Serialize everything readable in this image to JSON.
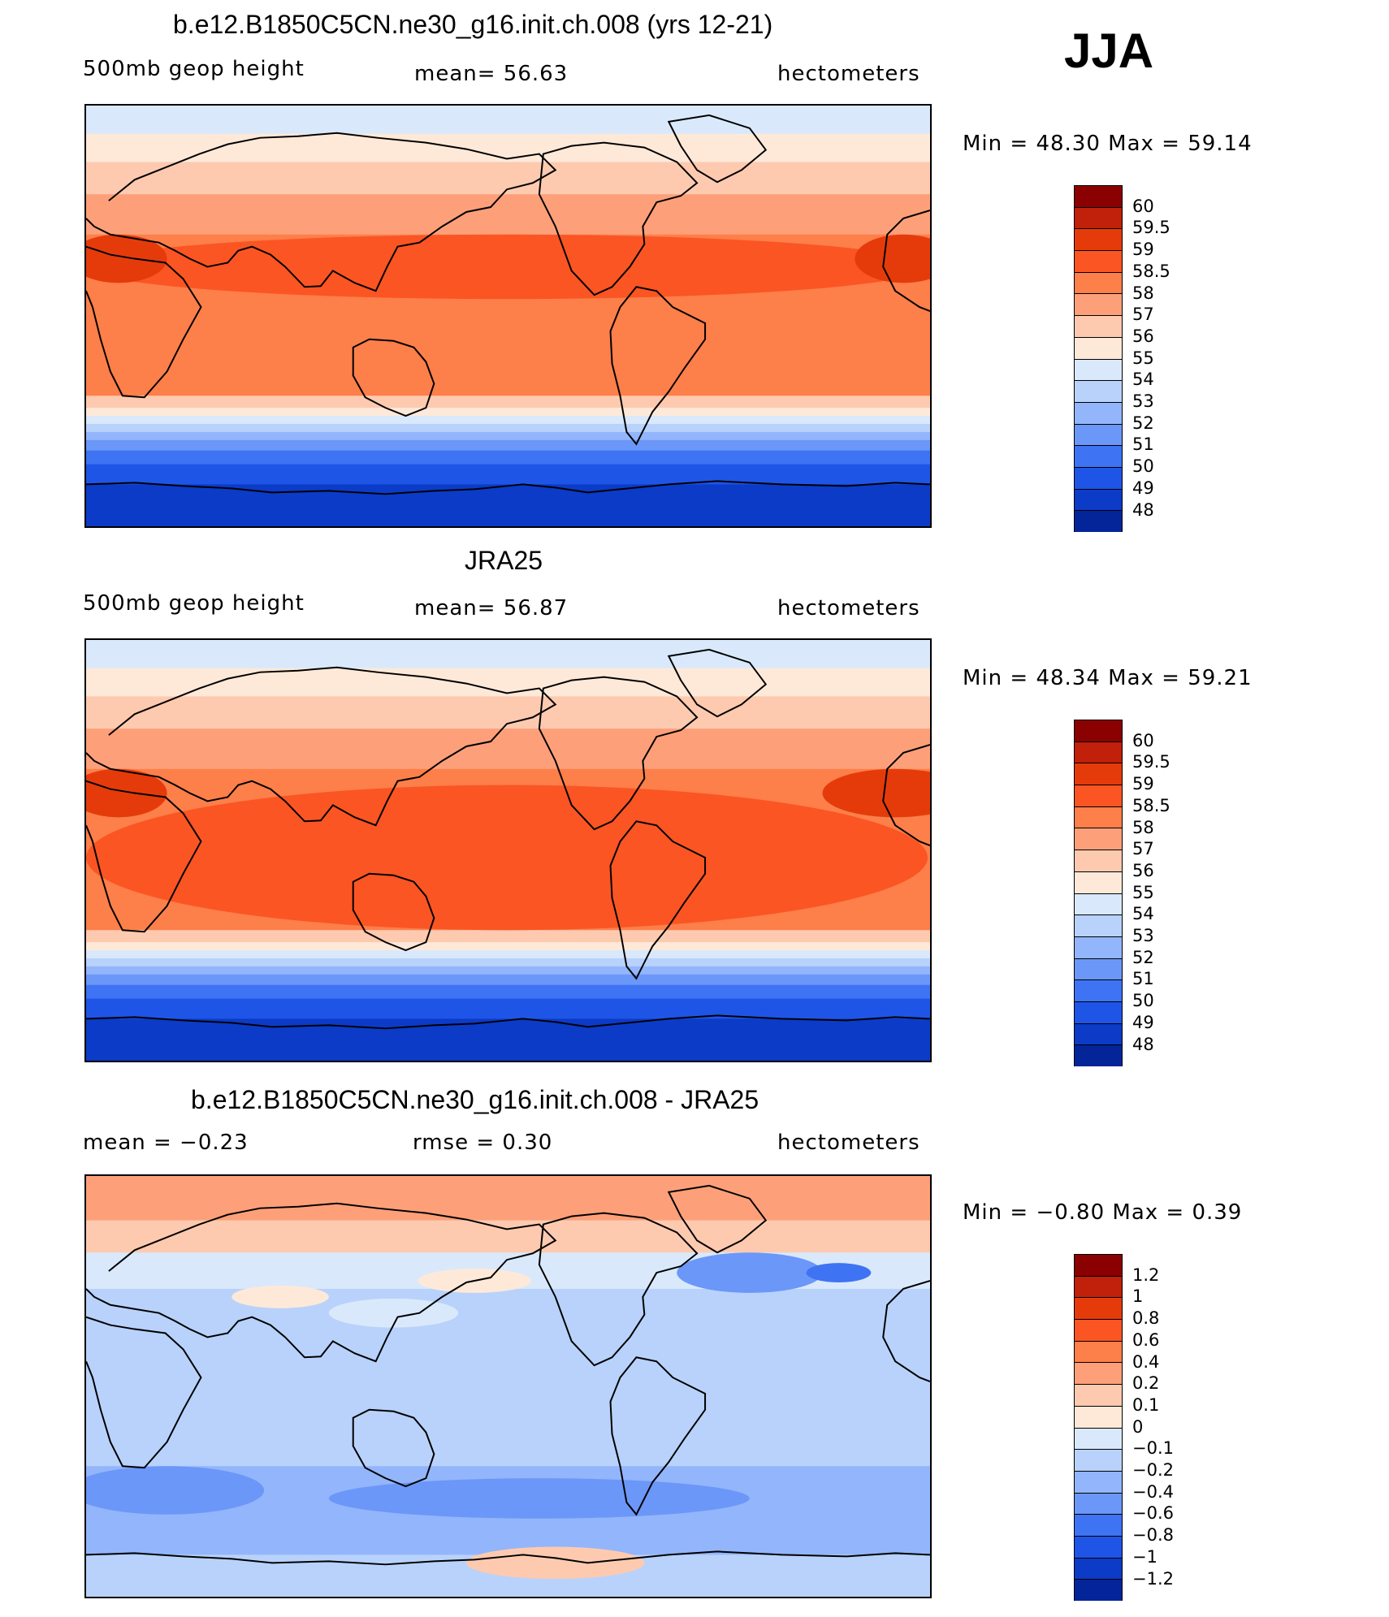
{
  "season": "JJA",
  "chart_data": [
    {
      "type": "heatmap",
      "title": "b.e12.B1850C5CN.ne30_g16.init.ch.008 (yrs 12-21)",
      "variable": "500mb geop height",
      "mean_text": "mean=   56.63",
      "units": "hectometers",
      "min_max_text": "Min =   48.30  Max =   59.14",
      "min": 48.3,
      "max": 59.14,
      "legend_levels": [
        "60",
        "59.5",
        "59",
        "58.5",
        "58",
        "57",
        "56",
        "55",
        "54",
        "53",
        "52",
        "51",
        "50",
        "49",
        "48"
      ],
      "legend_colors": [
        "#8b0000",
        "#c1200a",
        "#e53b0b",
        "#fb5523",
        "#fd7f4a",
        "#fda07a",
        "#fdcab0",
        "#fee9d9",
        "#d9e9fb",
        "#b8d2fb",
        "#93b5fb",
        "#6b97f8",
        "#3e73f3",
        "#1f55e6",
        "#0b3bc7",
        "#04249a"
      ]
    },
    {
      "type": "heatmap",
      "title": "JRA25",
      "variable": "500mb geop height",
      "mean_text": "mean=   56.87",
      "units": "hectometers",
      "min_max_text": "Min =   48.34  Max =   59.21",
      "min": 48.34,
      "max": 59.21,
      "legend_levels": [
        "60",
        "59.5",
        "59",
        "58.5",
        "58",
        "57",
        "56",
        "55",
        "54",
        "53",
        "52",
        "51",
        "50",
        "49",
        "48"
      ],
      "legend_colors": [
        "#8b0000",
        "#c1200a",
        "#e53b0b",
        "#fb5523",
        "#fd7f4a",
        "#fda07a",
        "#fdcab0",
        "#fee9d9",
        "#d9e9fb",
        "#b8d2fb",
        "#93b5fb",
        "#6b97f8",
        "#3e73f3",
        "#1f55e6",
        "#0b3bc7",
        "#04249a"
      ]
    },
    {
      "type": "heatmap",
      "title": "b.e12.B1850C5CN.ne30_g16.init.ch.008 - JRA25",
      "mean_text": "mean =   −0.23",
      "rmse_text": "rmse =    0.30",
      "units": "hectometers",
      "min_max_text": "Min =   −0.80  Max =    0.39",
      "min": -0.8,
      "max": 0.39,
      "legend_levels": [
        "1.2",
        "1",
        "0.8",
        "0.6",
        "0.4",
        "0.2",
        "0.1",
        "0",
        "−0.1",
        "−0.2",
        "−0.4",
        "−0.6",
        "−0.8",
        "−1",
        "−1.2"
      ],
      "legend_colors": [
        "#8b0000",
        "#c1200a",
        "#e53b0b",
        "#fb5523",
        "#fd7f4a",
        "#fda07a",
        "#fdcab0",
        "#fee9d9",
        "#d9e9fb",
        "#b8d2fb",
        "#93b5fb",
        "#6b97f8",
        "#3e73f3",
        "#1f55e6",
        "#0b3bc7",
        "#04249a"
      ]
    }
  ]
}
